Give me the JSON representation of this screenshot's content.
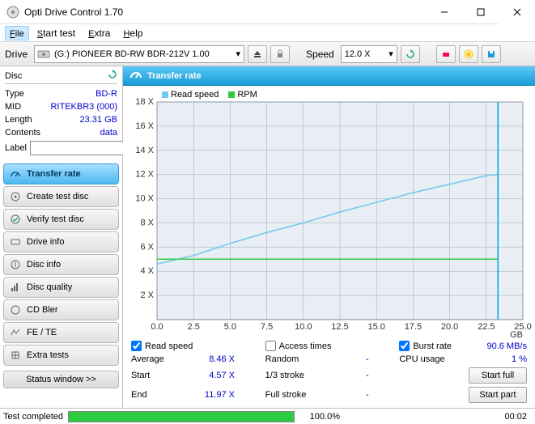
{
  "window": {
    "title": "Opti Drive Control 1.70"
  },
  "menu": {
    "file": "File",
    "start": "Start test",
    "extra": "Extra",
    "help": "Help"
  },
  "toolbar": {
    "drive_label": "Drive",
    "drive_value": "(G:)   PIONEER BD-RW   BDR-212V 1.00",
    "speed_label": "Speed",
    "speed_value": "12.0 X"
  },
  "disc": {
    "header": "Disc",
    "type_k": "Type",
    "type_v": "BD-R",
    "mid_k": "MID",
    "mid_v": "RITEKBR3 (000)",
    "length_k": "Length",
    "length_v": "23.31 GB",
    "contents_k": "Contents",
    "contents_v": "data",
    "label_k": "Label",
    "label_v": ""
  },
  "nav": {
    "transfer": "Transfer rate",
    "create": "Create test disc",
    "verify": "Verify test disc",
    "driveinfo": "Drive info",
    "discinfo": "Disc info",
    "discquality": "Disc quality",
    "cdbler": "CD Bler",
    "fete": "FE / TE",
    "extratests": "Extra tests",
    "status_window": "Status window >>"
  },
  "panel": {
    "title": "Transfer rate",
    "legend_read": "Read speed",
    "legend_rpm": "RPM"
  },
  "chart": {
    "x_ticks": [
      "0.0",
      "2.5",
      "5.0",
      "7.5",
      "10.0",
      "12.5",
      "15.0",
      "17.5",
      "20.0",
      "22.5",
      "25.0"
    ],
    "x_unit": "GB",
    "y_ticks": [
      "2 X",
      "4 X",
      "6 X",
      "8 X",
      "10 X",
      "12 X",
      "14 X",
      "16 X",
      "18 X"
    ],
    "xlim": [
      0,
      25
    ],
    "ylim": [
      0,
      18
    ],
    "bg": "#e8eef4",
    "grid": "#9aa8b4",
    "read_color": "#6ec8f0",
    "rpm_color": "#2ecc40",
    "cursor_color": "#00a0e0",
    "read_line": [
      [
        0,
        4.6
      ],
      [
        2.5,
        5.3
      ],
      [
        5.0,
        6.3
      ],
      [
        7.5,
        7.2
      ],
      [
        10.0,
        8.0
      ],
      [
        12.5,
        8.9
      ],
      [
        15.0,
        9.7
      ],
      [
        17.5,
        10.5
      ],
      [
        20.0,
        11.2
      ],
      [
        22.5,
        11.9
      ],
      [
        23.3,
        12.0
      ]
    ],
    "rpm_line": [
      [
        0,
        5.0
      ],
      [
        23.3,
        5.0
      ]
    ],
    "cursor_x": 23.3
  },
  "stats": {
    "read_cb": "Read speed",
    "access_cb": "Access times",
    "burst_cb": "Burst rate",
    "burst_v": "90.6 MB/s",
    "avg_k": "Average",
    "avg_v": "8.46 X",
    "random_k": "Random",
    "random_v": "-",
    "cpu_k": "CPU usage",
    "cpu_v": "1 %",
    "start_k": "Start",
    "start_v": "4.57 X",
    "third_k": "1/3 stroke",
    "third_v": "-",
    "startfull_btn": "Start full",
    "end_k": "End",
    "end_v": "11.97 X",
    "full_k": "Full stroke",
    "full_v": "-",
    "startpart_btn": "Start part"
  },
  "status": {
    "text": "Test completed",
    "pct": "100.0%",
    "time": "00:02"
  },
  "colors": {
    "accent": "#1a9cd8",
    "link": "#0000cc"
  }
}
